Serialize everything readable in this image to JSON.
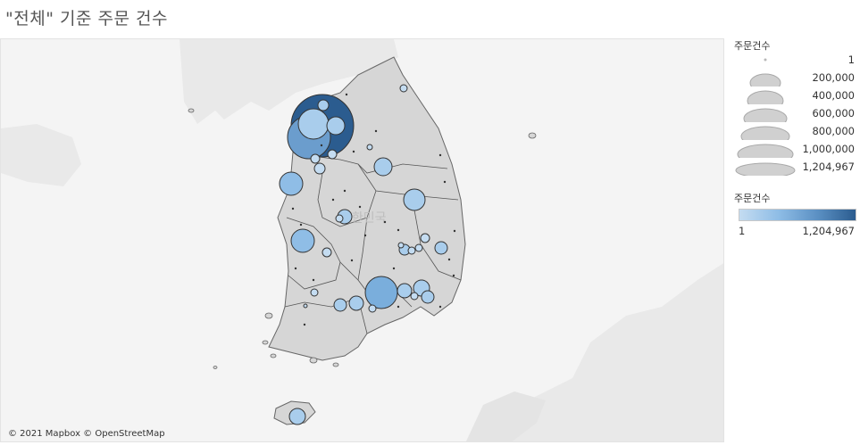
{
  "title": "\"전체\" 기준 주문 건수",
  "map": {
    "attribution": "© 2021 Mapbox © OpenStreetMap",
    "country_label": "대한민국",
    "land_color": "#d8d8d8",
    "water_color": "#f4f4f4",
    "marker_fill_min": "#c4dcf1",
    "marker_fill_max": "#2b5c8f",
    "marker_stroke": "#333333"
  },
  "legend": {
    "size_title": "주문건수",
    "size_labels": [
      "1",
      "200,000",
      "400,000",
      "600,000",
      "800,000",
      "1,000,000",
      "1,204,967"
    ],
    "color_title": "주문건수",
    "color_min_label": "1",
    "color_max_label": "1,204,967"
  }
}
